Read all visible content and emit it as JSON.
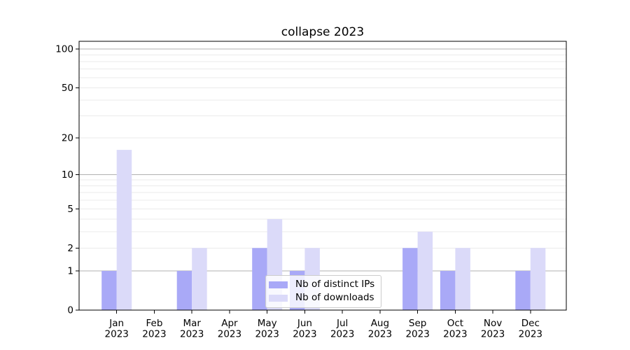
{
  "chart_data": {
    "type": "bar",
    "title": "collapse 2023",
    "categories": [
      "Jan",
      "Feb",
      "Mar",
      "Apr",
      "May",
      "Jun",
      "Jul",
      "Aug",
      "Sep",
      "Oct",
      "Nov",
      "Dec"
    ],
    "category_year": "2023",
    "series": [
      {
        "name": "Nb of distinct IPs",
        "color": "#a9a9f7",
        "values": [
          1,
          0,
          1,
          0,
          2,
          1,
          0,
          0,
          2,
          1,
          0,
          1
        ]
      },
      {
        "name": "Nb of downloads",
        "color": "#dbdaf9",
        "values": [
          16,
          0,
          2,
          0,
          4,
          2,
          0,
          0,
          3,
          2,
          0,
          2
        ]
      }
    ],
    "xlabel": "",
    "ylabel": "",
    "yscale": "log10(1+x)",
    "ylim": [
      0,
      115
    ],
    "yticks": [
      0,
      1,
      2,
      5,
      10,
      20,
      50,
      100
    ],
    "grid": {
      "major_values": [
        1,
        10,
        100
      ],
      "minor_values": [
        2,
        3,
        4,
        5,
        6,
        7,
        8,
        9,
        20,
        30,
        40,
        50,
        60,
        70,
        80,
        90
      ],
      "major_color": "#b0b0b0",
      "minor_color": "#ebebeb"
    },
    "legend": {
      "position": "inside lower center"
    },
    "axis_color": "#000000",
    "text_color": "#000000"
  }
}
